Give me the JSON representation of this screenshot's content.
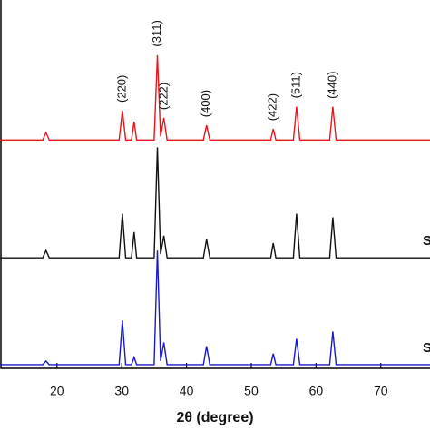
{
  "chart_data": {
    "type": "line",
    "xlabel": "2θ (degree)",
    "xlim": [
      11.2,
      77.6
    ],
    "ylim": [
      0,
      100
    ],
    "xticks": [
      20,
      30,
      40,
      50,
      60,
      70
    ],
    "x": [
      11.2,
      17.8,
      18.3,
      18.8,
      29.6,
      30.1,
      30.6,
      31.5,
      31.9,
      32.3,
      35.0,
      35.5,
      36.0,
      36.5,
      37.0,
      42.6,
      43.1,
      43.6,
      53.0,
      53.4,
      53.8,
      56.5,
      57.0,
      57.5,
      62.1,
      62.6,
      63.1,
      77.6
    ],
    "series": [
      {
        "color": "#e8141b",
        "values": [
          62,
          62,
          64,
          62,
          62,
          70,
          62,
          62,
          67,
          62,
          62,
          85,
          63,
          68,
          62,
          62,
          66,
          62,
          62,
          65,
          62,
          62,
          71,
          62,
          62,
          71,
          62,
          62
        ]
      },
      {
        "name": "S",
        "color": "#111111",
        "values": [
          30,
          30,
          32,
          30,
          30,
          42,
          30,
          30,
          37,
          30,
          30,
          60,
          31,
          36,
          30,
          30,
          35,
          30,
          30,
          34,
          30,
          30,
          42,
          30,
          30,
          41,
          30,
          30
        ]
      },
      {
        "name": "S",
        "color": "#1a1acc",
        "values": [
          1,
          1,
          2,
          1,
          1,
          13,
          1,
          1,
          3,
          1,
          1,
          32,
          2,
          7,
          1,
          1,
          6,
          1,
          1,
          4,
          1,
          1,
          8,
          1,
          1,
          10,
          1,
          1
        ]
      }
    ],
    "annotations": [
      {
        "text": "(220)",
        "x": 30.1
      },
      {
        "text": "(311)",
        "x": 35.5
      },
      {
        "text": "(222)",
        "x": 36.6
      },
      {
        "text": "(400)",
        "x": 43.1
      },
      {
        "text": "(422)",
        "x": 53.4
      },
      {
        "text": "(511)",
        "x": 57.0
      },
      {
        "text": "(440)",
        "x": 62.6
      }
    ]
  }
}
